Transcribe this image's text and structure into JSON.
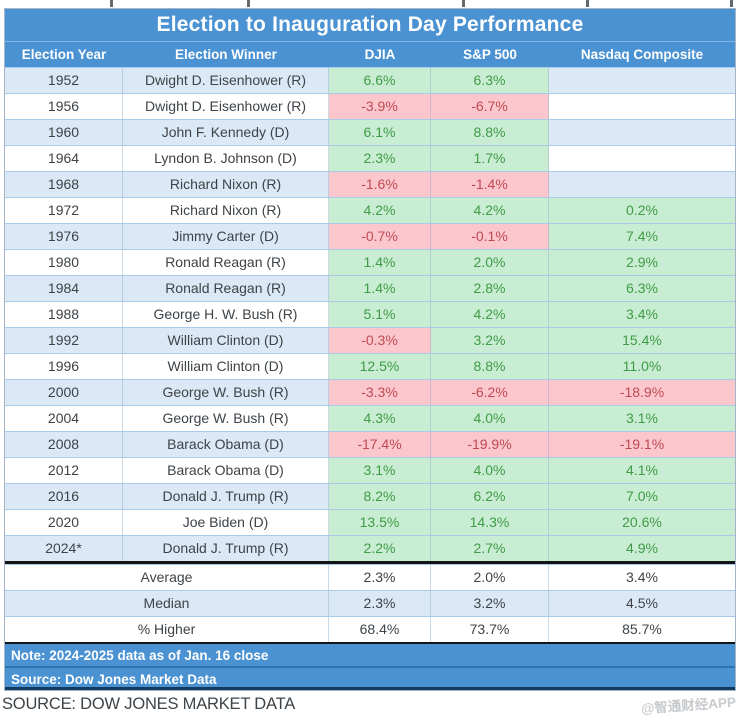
{
  "title": "Election to Inauguration Day Performance",
  "chart_data": {
    "type": "table",
    "title": "Election to Inauguration Day Performance",
    "columns": [
      "Election Year",
      "Election Winner",
      "DJIA",
      "S&P 500",
      "Nasdaq Composite"
    ],
    "rows": [
      {
        "year": "1952",
        "winner": "Dwight D. Eisenhower (R)",
        "djia": "6.6%",
        "djia_state": "pos",
        "sp500": "6.3%",
        "sp500_state": "pos",
        "nasdaq": "",
        "nasdaq_state": ""
      },
      {
        "year": "1956",
        "winner": "Dwight D. Eisenhower (R)",
        "djia": "-3.9%",
        "djia_state": "neg",
        "sp500": "-6.7%",
        "sp500_state": "neg",
        "nasdaq": "",
        "nasdaq_state": ""
      },
      {
        "year": "1960",
        "winner": "John F. Kennedy (D)",
        "djia": "6.1%",
        "djia_state": "pos",
        "sp500": "8.8%",
        "sp500_state": "pos",
        "nasdaq": "",
        "nasdaq_state": ""
      },
      {
        "year": "1964",
        "winner": "Lyndon B. Johnson (D)",
        "djia": "2.3%",
        "djia_state": "pos",
        "sp500": "1.7%",
        "sp500_state": "pos",
        "nasdaq": "",
        "nasdaq_state": ""
      },
      {
        "year": "1968",
        "winner": "Richard Nixon (R)",
        "djia": "-1.6%",
        "djia_state": "neg",
        "sp500": "-1.4%",
        "sp500_state": "neg",
        "nasdaq": "",
        "nasdaq_state": ""
      },
      {
        "year": "1972",
        "winner": "Richard Nixon (R)",
        "djia": "4.2%",
        "djia_state": "pos",
        "sp500": "4.2%",
        "sp500_state": "pos",
        "nasdaq": "0.2%",
        "nasdaq_state": "pos"
      },
      {
        "year": "1976",
        "winner": "Jimmy Carter (D)",
        "djia": "-0.7%",
        "djia_state": "neg",
        "sp500": "-0.1%",
        "sp500_state": "neg",
        "nasdaq": "7.4%",
        "nasdaq_state": "pos"
      },
      {
        "year": "1980",
        "winner": "Ronald Reagan (R)",
        "djia": "1.4%",
        "djia_state": "pos",
        "sp500": "2.0%",
        "sp500_state": "pos",
        "nasdaq": "2.9%",
        "nasdaq_state": "pos"
      },
      {
        "year": "1984",
        "winner": "Ronald Reagan (R)",
        "djia": "1.4%",
        "djia_state": "pos",
        "sp500": "2.8%",
        "sp500_state": "pos",
        "nasdaq": "6.3%",
        "nasdaq_state": "pos"
      },
      {
        "year": "1988",
        "winner": "George H. W. Bush (R)",
        "djia": "5.1%",
        "djia_state": "pos",
        "sp500": "4.2%",
        "sp500_state": "pos",
        "nasdaq": "3.4%",
        "nasdaq_state": "pos"
      },
      {
        "year": "1992",
        "winner": "William Clinton (D)",
        "djia": "-0.3%",
        "djia_state": "neg",
        "sp500": "3.2%",
        "sp500_state": "pos",
        "nasdaq": "15.4%",
        "nasdaq_state": "pos"
      },
      {
        "year": "1996",
        "winner": "William Clinton (D)",
        "djia": "12.5%",
        "djia_state": "pos",
        "sp500": "8.8%",
        "sp500_state": "pos",
        "nasdaq": "11.0%",
        "nasdaq_state": "pos"
      },
      {
        "year": "2000",
        "winner": "George W. Bush (R)",
        "djia": "-3.3%",
        "djia_state": "neg",
        "sp500": "-6.2%",
        "sp500_state": "neg",
        "nasdaq": "-18.9%",
        "nasdaq_state": "neg"
      },
      {
        "year": "2004",
        "winner": "George W. Bush (R)",
        "djia": "4.3%",
        "djia_state": "pos",
        "sp500": "4.0%",
        "sp500_state": "pos",
        "nasdaq": "3.1%",
        "nasdaq_state": "pos"
      },
      {
        "year": "2008",
        "winner": "Barack Obama (D)",
        "djia": "-17.4%",
        "djia_state": "neg",
        "sp500": "-19.9%",
        "sp500_state": "neg",
        "nasdaq": "-19.1%",
        "nasdaq_state": "neg"
      },
      {
        "year": "2012",
        "winner": "Barack Obama (D)",
        "djia": "3.1%",
        "djia_state": "pos",
        "sp500": "4.0%",
        "sp500_state": "pos",
        "nasdaq": "4.1%",
        "nasdaq_state": "pos"
      },
      {
        "year": "2016",
        "winner": "Donald J. Trump (R)",
        "djia": "8.2%",
        "djia_state": "pos",
        "sp500": "6.2%",
        "sp500_state": "pos",
        "nasdaq": "7.0%",
        "nasdaq_state": "pos"
      },
      {
        "year": "2020",
        "winner": "Joe Biden (D)",
        "djia": "13.5%",
        "djia_state": "pos",
        "sp500": "14.3%",
        "sp500_state": "pos",
        "nasdaq": "20.6%",
        "nasdaq_state": "pos"
      },
      {
        "year": "2024*",
        "winner": "Donald J. Trump (R)",
        "djia": "2.2%",
        "djia_state": "pos",
        "sp500": "2.7%",
        "sp500_state": "pos",
        "nasdaq": "4.9%",
        "nasdaq_state": "pos"
      }
    ],
    "summary_rows": [
      {
        "label": "Average",
        "djia": "2.3%",
        "sp500": "2.0%",
        "nasdaq": "3.4%"
      },
      {
        "label": "Median",
        "djia": "2.3%",
        "sp500": "3.2%",
        "nasdaq": "4.5%"
      },
      {
        "label": "% Higher",
        "djia": "68.4%",
        "sp500": "73.7%",
        "nasdaq": "85.7%"
      }
    ],
    "notes": [
      "Note: 2024-2025 data as of Jan. 16 close",
      "Source: Dow Jones Market Data"
    ],
    "layout_hints": {
      "striped_rows": true,
      "positive_cells_green": true,
      "negative_cells_pink": true,
      "nasdaq_blank_before": "1972"
    }
  },
  "footer": {
    "source_caption": "SOURCE: DOW JONES MARKET DATA",
    "watermark": "@智通财经APP"
  },
  "colors": {
    "header_blue": "#4a92d2",
    "row_stripe_blue": "#dbe9f6",
    "positive_bg": "#c9edd2",
    "positive_text": "#3f9b47",
    "negative_bg": "#fbc7cd",
    "negative_text": "#bf4a52",
    "summary_divider": "#141414",
    "text_dark": "#3e4347"
  }
}
